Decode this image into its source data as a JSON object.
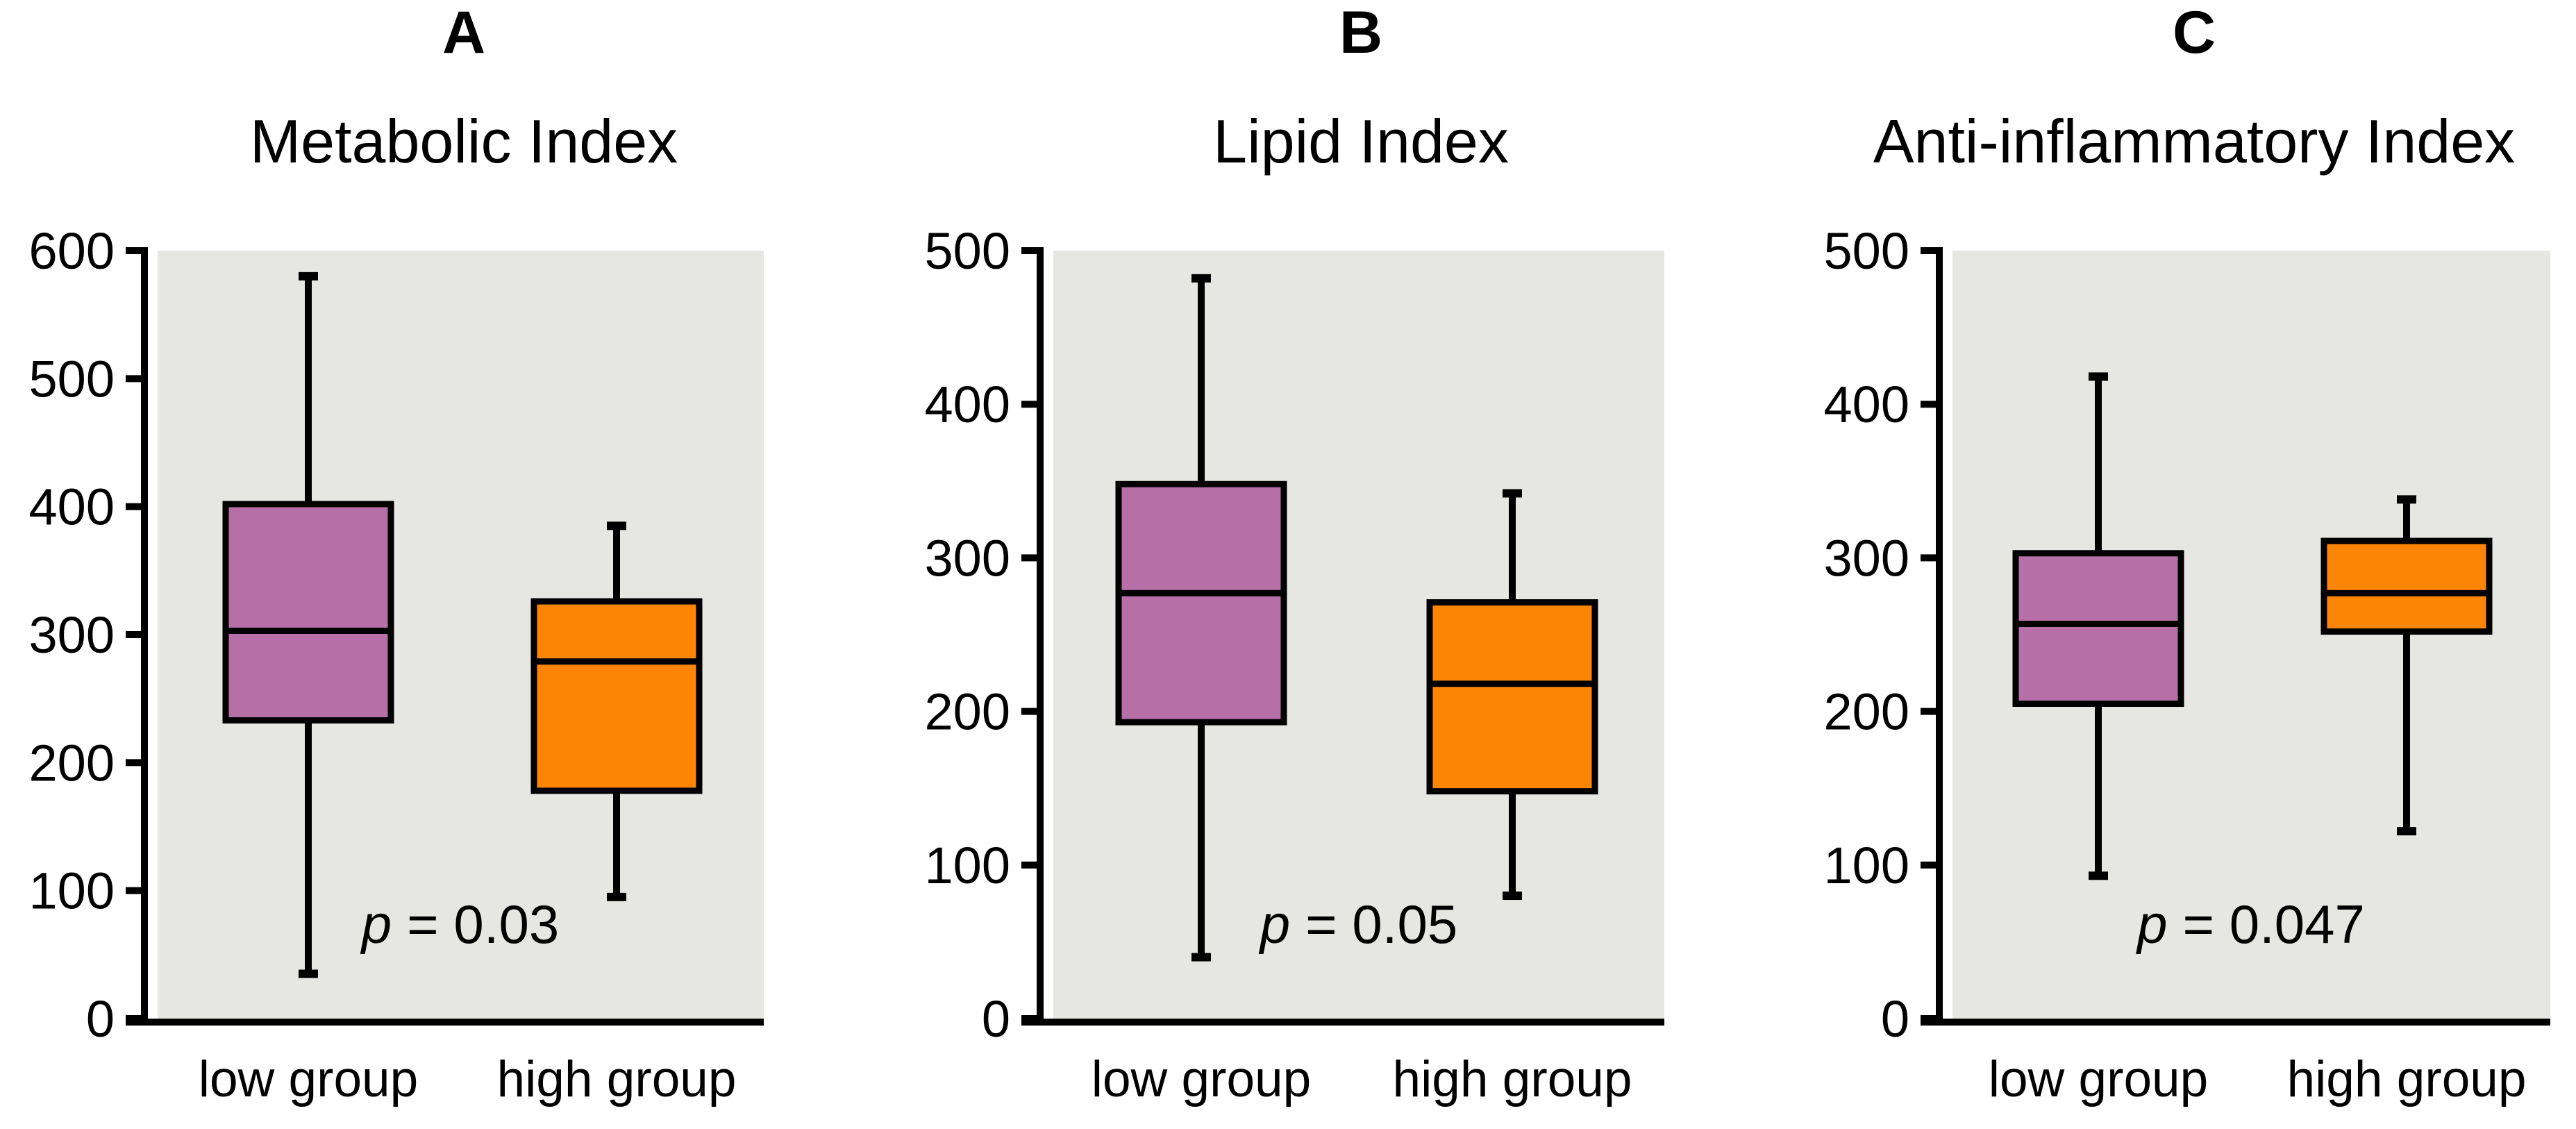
{
  "chart_data": [
    {
      "type": "boxplot",
      "letter": "A",
      "title": "Metabolic Index",
      "p_prefix": "p",
      "p_equals": "= 0.03",
      "ylim": [
        0,
        600
      ],
      "ytick_labels": [
        "0",
        "100",
        "200",
        "300",
        "400",
        "500",
        "600"
      ],
      "categories": [
        "low group",
        "high group"
      ],
      "grid": false,
      "legend": false,
      "plot_bg": "#E6E6E2",
      "line_color": "#000000",
      "series": [
        {
          "name": "low group",
          "color": "#B770A7",
          "whisker_low": 35,
          "q1": 233,
          "median": 303,
          "q3": 402,
          "whisker_high": 580
        },
        {
          "name": "high group",
          "color": "#FC8506",
          "whisker_low": 95,
          "q1": 178,
          "median": 279,
          "q3": 326,
          "whisker_high": 385
        }
      ]
    },
    {
      "type": "boxplot",
      "letter": "B",
      "title": "Lipid Index",
      "p_prefix": "p",
      "p_equals": "= 0.05",
      "ylim": [
        0,
        500
      ],
      "ytick_labels": [
        "0",
        "100",
        "200",
        "300",
        "400",
        "500"
      ],
      "categories": [
        "low group",
        "high group"
      ],
      "grid": false,
      "legend": false,
      "plot_bg": "#E6E6E2",
      "line_color": "#000000",
      "series": [
        {
          "name": "low group",
          "color": "#B770A7",
          "whisker_low": 40,
          "q1": 193,
          "median": 277,
          "q3": 348,
          "whisker_high": 482
        },
        {
          "name": "high group",
          "color": "#FC8506",
          "whisker_low": 80,
          "q1": 148,
          "median": 218,
          "q3": 271,
          "whisker_high": 342
        }
      ]
    },
    {
      "type": "boxplot",
      "letter": "C",
      "title": "Anti-inflammatory Index",
      "p_prefix": "p",
      "p_equals": "= 0.047",
      "ylim": [
        0,
        500
      ],
      "ytick_labels": [
        "0",
        "100",
        "200",
        "300",
        "400",
        "500"
      ],
      "categories": [
        "low group",
        "high group"
      ],
      "grid": false,
      "legend": false,
      "plot_bg": "#E6E6E2",
      "line_color": "#000000",
      "series": [
        {
          "name": "low group",
          "color": "#B770A7",
          "whisker_low": 93,
          "q1": 205,
          "median": 257,
          "q3": 303,
          "whisker_high": 418
        },
        {
          "name": "high group",
          "color": "#FC8506",
          "whisker_low": 122,
          "q1": 252,
          "median": 277,
          "q3": 311,
          "whisker_high": 338
        }
      ]
    }
  ]
}
